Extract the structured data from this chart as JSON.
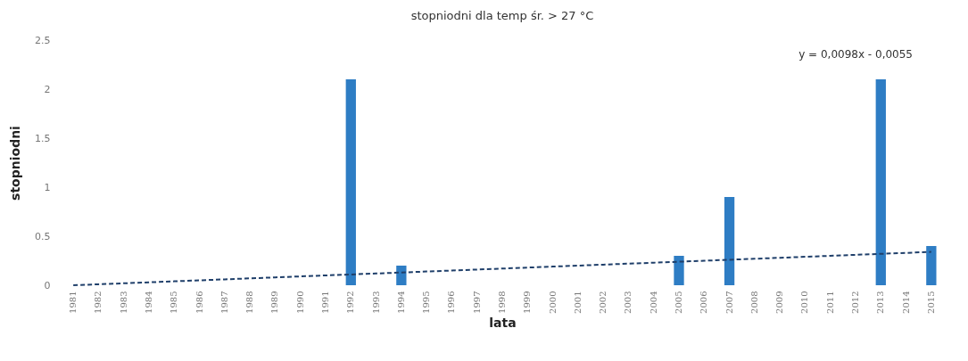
{
  "chart_data": {
    "type": "bar",
    "title": "stopniodni dla temp śr. > 27 °C",
    "xlabel": "lata",
    "ylabel": "stopniodni",
    "categories": [
      "1981",
      "1982",
      "1983",
      "1984",
      "1985",
      "1986",
      "1987",
      "1988",
      "1989",
      "1990",
      "1991",
      "1992",
      "1993",
      "1994",
      "1995",
      "1996",
      "1997",
      "1998",
      "1999",
      "2000",
      "2001",
      "2002",
      "2003",
      "2004",
      "2005",
      "2006",
      "2007",
      "2008",
      "2009",
      "2010",
      "2011",
      "2012",
      "2013",
      "2014",
      "2015"
    ],
    "series": [
      {
        "color": "#2e7dc4",
        "values": [
          0,
          0,
          0,
          0,
          0,
          0,
          0,
          0,
          0,
          0,
          0,
          2.1,
          0,
          0.2,
          0,
          0,
          0,
          0,
          0,
          0,
          0,
          0,
          0,
          0,
          0.3,
          0,
          0.9,
          0,
          0,
          0,
          0,
          0,
          2.1,
          0,
          0.4
        ]
      },
      {
        "type": "line",
        "color": "#1f3f6a",
        "line_style": "dashed",
        "values": [
          0,
          0.01,
          0.02,
          0.03,
          0.04,
          0.05,
          0.06,
          0.07,
          0.08,
          0.09,
          0.1,
          0.11,
          0.12,
          0.13,
          0.14,
          0.15,
          0.16,
          0.17,
          0.18,
          0.19,
          0.2,
          0.21,
          0.22,
          0.23,
          0.24,
          0.25,
          0.26,
          0.27,
          0.28,
          0.29,
          0.3,
          0.31,
          0.32,
          0.33,
          0.34
        ]
      }
    ],
    "annotations": [
      "y = 0,0098x - 0,0055"
    ],
    "ylim": [
      0,
      2.5
    ],
    "yticks": [
      0,
      0.5,
      1,
      1.5,
      2,
      2.5
    ],
    "grid": false
  }
}
